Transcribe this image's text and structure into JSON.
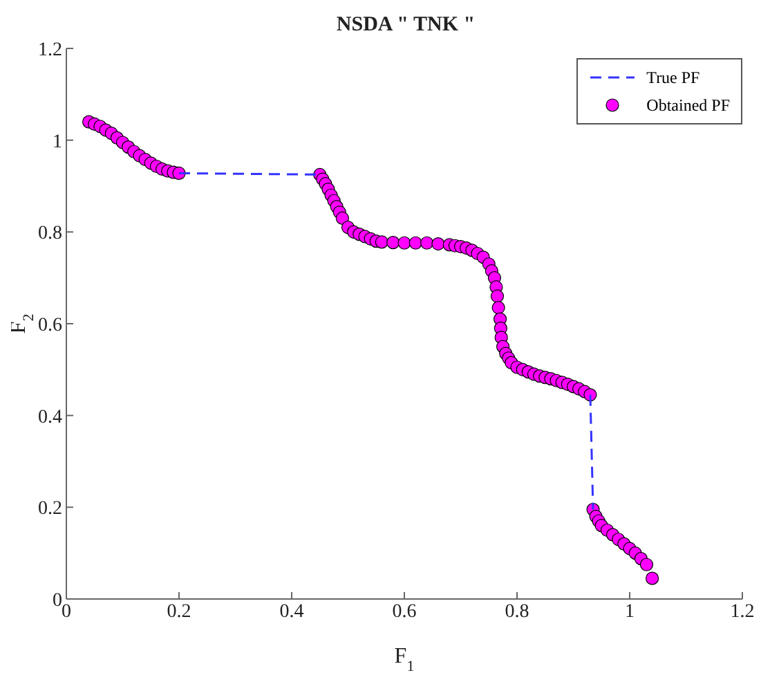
{
  "chart_data": {
    "type": "scatter",
    "title": "NSDA \" TNK \"",
    "xlabel": "F$_{1}$",
    "ylabel": "F$_{2}$",
    "xlim": [
      0,
      1.2
    ],
    "ylim": [
      0,
      1.2
    ],
    "xticks": [
      0,
      0.2,
      0.4,
      0.6,
      0.8,
      1,
      1.2
    ],
    "yticks": [
      0,
      0.2,
      0.4,
      0.6,
      0.8,
      1,
      1.2
    ],
    "grid": false,
    "legend": "top right",
    "series": [
      {
        "name": "True PF",
        "type": "line",
        "line_style": "dashed",
        "marker": "none",
        "color": "#3333ff",
        "x": [
          0.2,
          0.45,
          0.7,
          0.93,
          0.935
        ],
        "values": [
          0.928,
          0.925,
          null,
          0.445,
          0.195
        ]
      },
      {
        "name": "Obtained PF",
        "marker": "circle",
        "color": "#ff00ff",
        "x": [
          0.04,
          0.05,
          0.06,
          0.07,
          0.08,
          0.09,
          0.1,
          0.11,
          0.12,
          0.13,
          0.14,
          0.15,
          0.16,
          0.17,
          0.18,
          0.19,
          0.2,
          0.45,
          0.455,
          0.46,
          0.465,
          0.47,
          0.475,
          0.48,
          0.485,
          0.49,
          0.5,
          0.51,
          0.52,
          0.53,
          0.54,
          0.55,
          0.56,
          0.58,
          0.6,
          0.62,
          0.64,
          0.66,
          0.68,
          0.69,
          0.7,
          0.71,
          0.72,
          0.73,
          0.74,
          0.75,
          0.755,
          0.76,
          0.763,
          0.765,
          0.767,
          0.77,
          0.771,
          0.772,
          0.775,
          0.78,
          0.785,
          0.79,
          0.8,
          0.81,
          0.82,
          0.83,
          0.84,
          0.85,
          0.86,
          0.87,
          0.88,
          0.89,
          0.9,
          0.91,
          0.92,
          0.93,
          0.935,
          0.94,
          0.945,
          0.95,
          0.96,
          0.97,
          0.98,
          0.99,
          1,
          1.01,
          1.02,
          1.03,
          1.04
        ],
        "values": [
          1.04,
          1.035,
          1.03,
          1.022,
          1.015,
          1.005,
          0.995,
          0.985,
          0.975,
          0.966,
          0.958,
          0.95,
          0.943,
          0.937,
          0.933,
          0.93,
          0.928,
          0.925,
          0.915,
          0.905,
          0.893,
          0.88,
          0.868,
          0.855,
          0.843,
          0.83,
          0.81,
          0.8,
          0.795,
          0.79,
          0.785,
          0.78,
          0.778,
          0.777,
          0.776,
          0.776,
          0.776,
          0.774,
          0.772,
          0.77,
          0.768,
          0.765,
          0.76,
          0.753,
          0.745,
          0.73,
          0.715,
          0.7,
          0.68,
          0.66,
          0.635,
          0.61,
          0.59,
          0.57,
          0.55,
          0.535,
          0.525,
          0.515,
          0.505,
          0.5,
          0.495,
          0.49,
          0.486,
          0.483,
          0.48,
          0.476,
          0.472,
          0.468,
          0.463,
          0.458,
          0.452,
          0.445,
          0.195,
          0.18,
          0.17,
          0.16,
          0.15,
          0.14,
          0.13,
          0.12,
          0.11,
          0.1,
          0.088,
          0.075,
          0.045
        ]
      }
    ]
  }
}
